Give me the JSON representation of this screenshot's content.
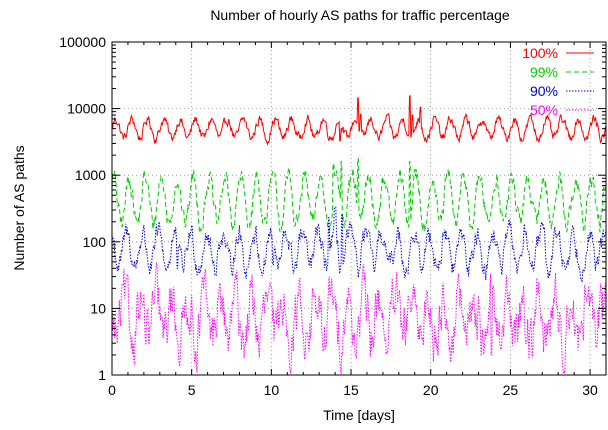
{
  "chart_data": {
    "type": "line",
    "title": "Number of hourly AS paths for traffic percentage",
    "xlabel": "Time [days]",
    "ylabel": "Number of AS paths",
    "xlim": [
      0,
      31
    ],
    "ylim": [
      1,
      100000
    ],
    "yscale": "log",
    "grid": true,
    "legend_position": "top-right",
    "xticks": [
      0,
      5,
      10,
      15,
      20,
      25,
      30
    ],
    "xtick_labels": [
      "0",
      "5",
      "10",
      "15",
      "20",
      "25",
      "30"
    ],
    "yticks": [
      1,
      10,
      100,
      1000,
      10000,
      100000
    ],
    "ytick_labels": [
      "1",
      "10",
      "100",
      "1000",
      "10000",
      "100000"
    ],
    "series": [
      {
        "name": "100%",
        "color": "#ff0000",
        "dash": "solid",
        "base": 5000,
        "amplitude": 0.14,
        "noise": 0.06,
        "spikes": [
          [
            15.45,
            14500
          ],
          [
            15.6,
            8200
          ],
          [
            18.7,
            15500
          ],
          [
            18.85,
            8000
          ],
          [
            19.35,
            10500
          ],
          [
            14.3,
            3300
          ]
        ]
      },
      {
        "name": "99%",
        "color": "#00cc00",
        "dash": "dashed",
        "base": 420,
        "amplitude": 0.35,
        "noise": 0.12,
        "spikes": [
          [
            13.9,
            1500
          ],
          [
            14.4,
            1600
          ],
          [
            15.45,
            1800
          ],
          [
            18.7,
            1600
          ],
          [
            14.0,
            1000
          ]
        ]
      },
      {
        "name": "90%",
        "color": "#0000cc",
        "dash": "dotted",
        "base": 75,
        "amplitude": 0.25,
        "noise": 0.14,
        "spikes": [
          [
            13.6,
            230
          ],
          [
            14.0,
            330
          ],
          [
            14.45,
            260
          ],
          [
            4.1,
            40
          ],
          [
            10.1,
            45
          ]
        ]
      },
      {
        "name": "50%",
        "color": "#ff00ff",
        "dash": "dotted",
        "base": 7,
        "amplitude": 0.3,
        "noise": 0.32,
        "spikes": [
          [
            1.6,
            17
          ],
          [
            14.9,
            16
          ],
          [
            23.8,
            2
          ],
          [
            26.0,
            3
          ]
        ]
      }
    ]
  }
}
